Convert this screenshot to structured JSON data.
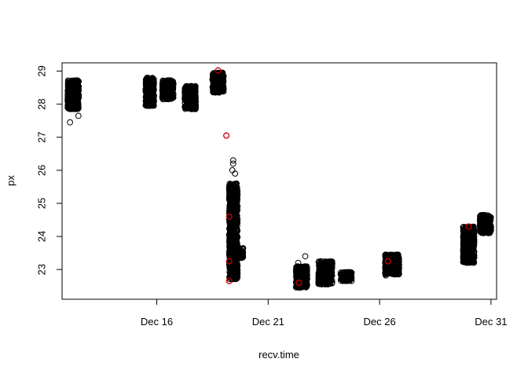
{
  "chart_data": {
    "type": "scatter",
    "title": "",
    "xlabel": "recv.time",
    "ylabel": "px",
    "x_ticks": [
      "Dec 16",
      "Dec 21",
      "Dec 26",
      "Dec 31"
    ],
    "y_ticks": [
      "23",
      "24",
      "25",
      "26",
      "27",
      "28",
      "29"
    ],
    "xlim": [
      "2023-12-11T18:00",
      "2023-12-31T06:00"
    ],
    "ylim": [
      22.1,
      29.25
    ],
    "grid": false,
    "legend": "none",
    "colors": {
      "black": "#000000",
      "red": "#cc0000"
    },
    "clusters": [
      {
        "start": "2023-12-12T00:00",
        "end": "2023-12-12T12:00",
        "y_min": 27.85,
        "y_max": 28.72,
        "outliers": [
          27.45,
          27.65
        ]
      },
      {
        "start": "2023-12-15T12:00",
        "end": "2023-12-15T21:00",
        "y_min": 27.95,
        "y_max": 28.8,
        "outliers": []
      },
      {
        "start": "2023-12-16T06:00",
        "end": "2023-12-16T18:00",
        "y_min": 28.15,
        "y_max": 28.72,
        "outliers": []
      },
      {
        "start": "2023-12-17T06:00",
        "end": "2023-12-17T18:00",
        "y_min": 27.85,
        "y_max": 28.55,
        "outliers": []
      },
      {
        "start": "2023-12-18T12:00",
        "end": "2023-12-19T00:00",
        "y_min": 28.35,
        "y_max": 28.95,
        "outliers": [
          28.95
        ]
      },
      {
        "start": "2023-12-19T06:00",
        "end": "2023-12-19T15:00",
        "y_min": 22.7,
        "y_max": 25.6,
        "outliers": [
          25.9,
          26.0,
          26.2,
          26.3
        ]
      },
      {
        "start": "2023-12-19T12:00",
        "end": "2023-12-19T21:00",
        "y_min": 23.35,
        "y_max": 23.65,
        "outliers": []
      },
      {
        "start": "2023-12-22T06:00",
        "end": "2023-12-22T18:00",
        "y_min": 22.45,
        "y_max": 23.1,
        "outliers": [
          23.4,
          23.2
        ]
      },
      {
        "start": "2023-12-23T06:00",
        "end": "2023-12-23T21:00",
        "y_min": 22.55,
        "y_max": 23.25,
        "outliers": []
      },
      {
        "start": "2023-12-24T06:00",
        "end": "2023-12-24T18:00",
        "y_min": 22.65,
        "y_max": 22.92,
        "outliers": []
      },
      {
        "start": "2023-12-26T06:00",
        "end": "2023-12-26T21:00",
        "y_min": 22.85,
        "y_max": 23.45,
        "outliers": [
          22.82
        ]
      },
      {
        "start": "2023-12-29T18:00",
        "end": "2023-12-30T06:00",
        "y_min": 23.2,
        "y_max": 24.3,
        "outliers": []
      },
      {
        "start": "2023-12-30T12:00",
        "end": "2023-12-31T00:00",
        "y_min": 24.1,
        "y_max": 24.65,
        "outliers": []
      }
    ],
    "highlighted_points": [
      {
        "x": "2023-12-18T18:00",
        "y": 29.02
      },
      {
        "x": "2023-12-19T03:00",
        "y": 27.05
      },
      {
        "x": "2023-12-19T06:00",
        "y": 24.6
      },
      {
        "x": "2023-12-19T06:00",
        "y": 23.25
      },
      {
        "x": "2023-12-19T06:00",
        "y": 22.65
      },
      {
        "x": "2023-12-22T09:00",
        "y": 22.6
      },
      {
        "x": "2023-12-26T09:00",
        "y": 23.25
      },
      {
        "x": "2023-12-30T00:00",
        "y": 24.3
      }
    ]
  }
}
